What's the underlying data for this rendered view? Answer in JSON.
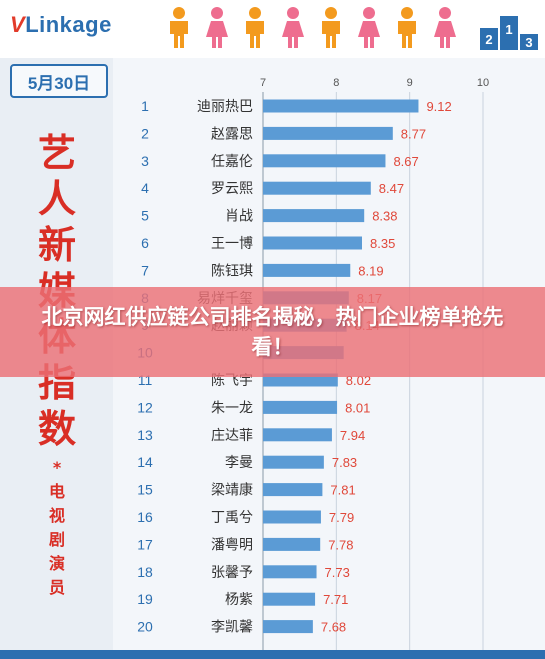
{
  "header": {
    "logo_v": "V",
    "logo_rest": "Linkage",
    "podium_labels": [
      "2",
      "1",
      "3"
    ]
  },
  "sidebar": {
    "date": "5月30日",
    "title_chars": [
      "艺",
      "人",
      "新",
      "媒",
      "体",
      "指",
      "数"
    ],
    "asterisk": "*",
    "subtitle_chars": [
      "电",
      "视",
      "剧",
      "演",
      "员"
    ]
  },
  "banner": {
    "text": "北京网红供应链公司排名揭秘，热门企业榜单抢先看！"
  },
  "colors": {
    "bar": "#5b9bd5",
    "value_label": "#e0483a",
    "rank_number": "#2c6fb0",
    "title": "#d92e25",
    "banner": "#ec7076",
    "male_icon": "#f39a1e",
    "female_icon": "#ee6d8f"
  },
  "chart_data": {
    "type": "bar",
    "orientation": "horizontal",
    "xlim": [
      7,
      10
    ],
    "x_ticks": [
      "7",
      "8",
      "9",
      "10"
    ],
    "grid": true,
    "ranks": [
      "1",
      "2",
      "3",
      "4",
      "5",
      "6",
      "7",
      "8",
      "9",
      "10",
      "11",
      "12",
      "13",
      "14",
      "15",
      "16",
      "17",
      "18",
      "19",
      "20"
    ],
    "categories": [
      "迪丽热巴",
      "赵露思",
      "任嘉伦",
      "罗云熙",
      "肖战",
      "王一博",
      "陈钰琪",
      "易烊千玺",
      "赵丽颖",
      "",
      "陈飞宇",
      "朱一龙",
      "庄达菲",
      "李曼",
      "梁靖康",
      "丁禹兮",
      "潘粤明",
      "张馨予",
      "杨紫",
      "李凯馨"
    ],
    "values": [
      9.12,
      8.77,
      8.67,
      8.47,
      8.38,
      8.35,
      8.19,
      8.17,
      8.14,
      8.1,
      8.02,
      8.01,
      7.94,
      7.83,
      7.81,
      7.79,
      7.78,
      7.73,
      7.71,
      7.68
    ],
    "value_labels": [
      "9.12",
      "8.77",
      "8.67",
      "8.47",
      "8.38",
      "8.35",
      "8.19",
      "8.17",
      "8.14",
      "",
      "8.02",
      "8.01",
      "7.94",
      "7.83",
      "7.81",
      "7.79",
      "7.78",
      "7.73",
      "7.71",
      "7.68"
    ]
  }
}
